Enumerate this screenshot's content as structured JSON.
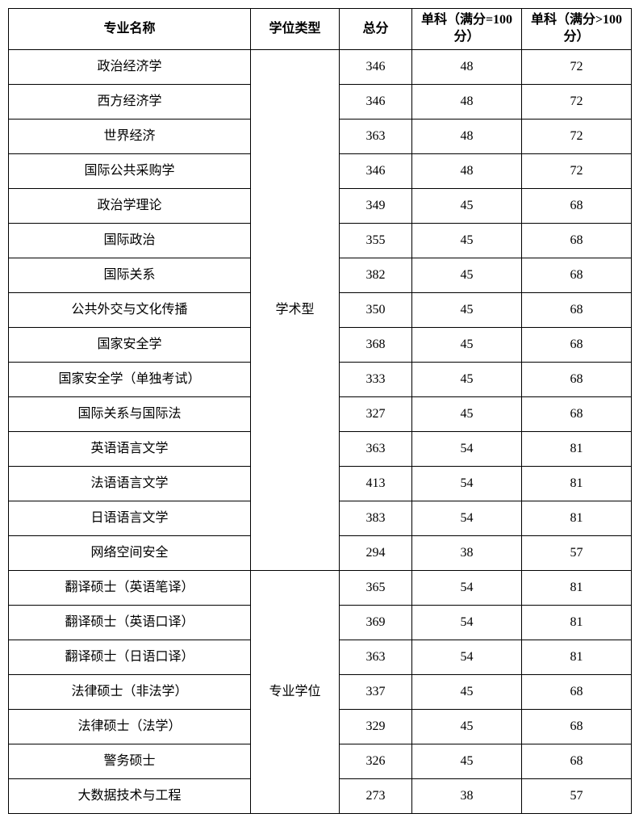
{
  "table": {
    "headers": {
      "major": "专业名称",
      "degree_type": "学位类型",
      "total": "总分",
      "subject_eq100": "单科（满分=100分）",
      "subject_gt100": "单科（满分>100分）"
    },
    "groups": [
      {
        "degree_type": "学术型",
        "rows": [
          {
            "major": "政治经济学",
            "total": "346",
            "s100": "48",
            "g100": "72"
          },
          {
            "major": "西方经济学",
            "total": "346",
            "s100": "48",
            "g100": "72"
          },
          {
            "major": "世界经济",
            "total": "363",
            "s100": "48",
            "g100": "72"
          },
          {
            "major": "国际公共采购学",
            "total": "346",
            "s100": "48",
            "g100": "72"
          },
          {
            "major": "政治学理论",
            "total": "349",
            "s100": "45",
            "g100": "68"
          },
          {
            "major": "国际政治",
            "total": "355",
            "s100": "45",
            "g100": "68"
          },
          {
            "major": "国际关系",
            "total": "382",
            "s100": "45",
            "g100": "68"
          },
          {
            "major": "公共外交与文化传播",
            "total": "350",
            "s100": "45",
            "g100": "68"
          },
          {
            "major": "国家安全学",
            "total": "368",
            "s100": "45",
            "g100": "68"
          },
          {
            "major": "国家安全学（单独考试）",
            "total": "333",
            "s100": "45",
            "g100": "68"
          },
          {
            "major": "国际关系与国际法",
            "total": "327",
            "s100": "45",
            "g100": "68"
          },
          {
            "major": "英语语言文学",
            "total": "363",
            "s100": "54",
            "g100": "81"
          },
          {
            "major": "法语语言文学",
            "total": "413",
            "s100": "54",
            "g100": "81"
          },
          {
            "major": "日语语言文学",
            "total": "383",
            "s100": "54",
            "g100": "81"
          },
          {
            "major": "网络空间安全",
            "total": "294",
            "s100": "38",
            "g100": "57"
          }
        ]
      },
      {
        "degree_type": "专业学位",
        "rows": [
          {
            "major": "翻译硕士（英语笔译）",
            "total": "365",
            "s100": "54",
            "g100": "81"
          },
          {
            "major": "翻译硕士（英语口译）",
            "total": "369",
            "s100": "54",
            "g100": "81"
          },
          {
            "major": "翻译硕士（日语口译）",
            "total": "363",
            "s100": "54",
            "g100": "81"
          },
          {
            "major": "法律硕士（非法学）",
            "total": "337",
            "s100": "45",
            "g100": "68"
          },
          {
            "major": "法律硕士（法学）",
            "total": "329",
            "s100": "45",
            "g100": "68"
          },
          {
            "major": "警务硕士",
            "total": "326",
            "s100": "45",
            "g100": "68"
          },
          {
            "major": "大数据技术与工程",
            "total": "273",
            "s100": "38",
            "g100": "57"
          }
        ]
      }
    ]
  }
}
